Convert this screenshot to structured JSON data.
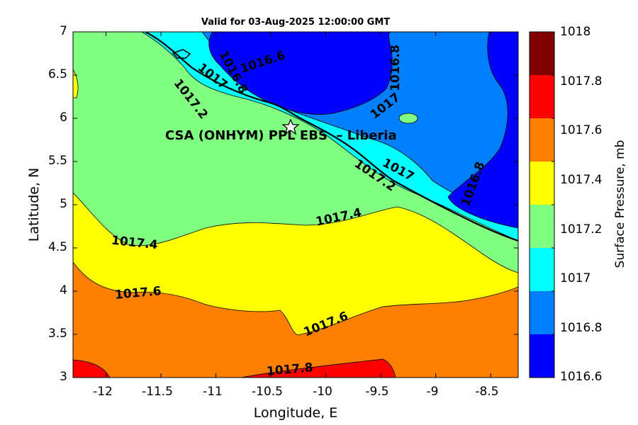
{
  "title": "Valid for 03-Aug-2025 12:00:00 GMT",
  "xlabel": "Longitude, E",
  "ylabel": "Latitude, N",
  "colorbar_label": "Surface Pressure, mb",
  "site_label": "CSA (ONHYM) PPL EBS  – Liberia",
  "site_marker": "star-icon",
  "x_ticks": [
    "-12",
    "-11.5",
    "-11",
    "-10.5",
    "-10",
    "-9.5",
    "-9",
    "-8.5"
  ],
  "y_ticks": [
    "7",
    "6.5",
    "6",
    "5.5",
    "5",
    "4.5",
    "4",
    "3.5",
    "3"
  ],
  "colorbar_ticks": [
    "1018",
    "1017.8",
    "1017.6",
    "1017.4",
    "1017.2",
    "1017",
    "1016.8",
    "1016.6"
  ],
  "colorbar_colors": [
    "#0000FF",
    "#0080FF",
    "#00FFFF",
    "#80FF80",
    "#FFFF00",
    "#FF8000",
    "#FF0000",
    "#800000"
  ],
  "contour_labels": [
    {
      "text": "1016.6"
    },
    {
      "text": "1016.8"
    },
    {
      "text": "1017"
    },
    {
      "text": "1017.2"
    },
    {
      "text": "1016.8"
    },
    {
      "text": "1017"
    },
    {
      "text": "1017"
    },
    {
      "text": "1017.2"
    },
    {
      "text": "1016.8"
    },
    {
      "text": "1017.4"
    },
    {
      "text": "1017.4"
    },
    {
      "text": "1017.6"
    },
    {
      "text": "1017.6"
    },
    {
      "text": "1017.8"
    }
  ],
  "chart_data": {
    "type": "heatmap",
    "title": "Valid for 03-Aug-2025 12:00:00 GMT",
    "xlabel": "Longitude, E",
    "ylabel": "Latitude, N",
    "xlim": [
      -12.3,
      -8.25
    ],
    "ylim": [
      3,
      7
    ],
    "colorbar": {
      "label": "Surface Pressure, mb",
      "range": [
        1016.6,
        1018
      ],
      "step": 0.2
    },
    "contour_levels": [
      1016.6,
      1016.8,
      1017.0,
      1017.2,
      1017.4,
      1017.6,
      1017.8,
      1018.0
    ],
    "site": {
      "name": "CSA (ONHYM) PPL EBS  – Liberia",
      "lon": -10.3,
      "lat": 5.9
    }
  }
}
